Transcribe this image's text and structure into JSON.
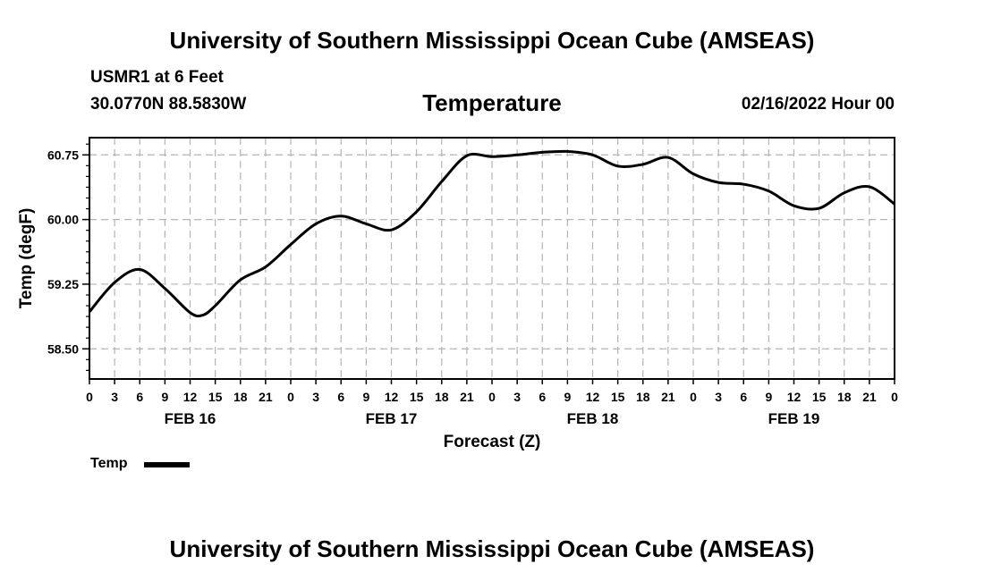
{
  "header": {
    "title": "University of Southern Mississippi Ocean Cube (AMSEAS)",
    "station": "USMR1 at 6 Feet",
    "coords": "30.0770N  88.5830W",
    "variable": "Temperature",
    "datetime": "02/16/2022 Hour 00"
  },
  "footer": {
    "title": "University of Southern Mississippi Ocean Cube (AMSEAS)"
  },
  "legend": {
    "label": "Temp",
    "color": "#000000"
  },
  "chart_data": {
    "type": "line",
    "title": "Temperature",
    "xlabel": "Forecast (Z)",
    "ylabel": "Temp (degF)",
    "xlim": [
      0,
      96
    ],
    "ylim": [
      58.15,
      60.95
    ],
    "yticks": [
      58.5,
      59.25,
      60.0,
      60.75
    ],
    "ytick_labels": [
      "58.50",
      "59.25",
      "60.00",
      "60.75"
    ],
    "yminor_step": 0.125,
    "xticks": [
      0,
      3,
      6,
      9,
      12,
      15,
      18,
      21,
      24,
      27,
      30,
      33,
      36,
      39,
      42,
      45,
      48,
      51,
      54,
      57,
      60,
      63,
      66,
      69,
      72,
      75,
      78,
      81,
      84,
      87,
      90,
      93,
      96
    ],
    "xtick_labels": [
      "0",
      "3",
      "6",
      "9",
      "12",
      "15",
      "18",
      "21",
      "0",
      "3",
      "6",
      "9",
      "12",
      "15",
      "18",
      "21",
      "0",
      "3",
      "6",
      "9",
      "12",
      "15",
      "18",
      "21",
      "0",
      "3",
      "6",
      "9",
      "12",
      "15",
      "18",
      "21",
      "0"
    ],
    "day_labels": [
      {
        "label": "FEB 16",
        "at": 12
      },
      {
        "label": "FEB 17",
        "at": 36
      },
      {
        "label": "FEB 18",
        "at": 60
      },
      {
        "label": "FEB 19",
        "at": 84
      }
    ],
    "grid": true,
    "series": [
      {
        "name": "Temp",
        "x": [
          0,
          3,
          6,
          9,
          12,
          13.5,
          15,
          18,
          21,
          24,
          27,
          30,
          33,
          36,
          39,
          42,
          45,
          48,
          51,
          54,
          57,
          60,
          63,
          66,
          69,
          72,
          75,
          78,
          81,
          84,
          87,
          90,
          93,
          96
        ],
        "values": [
          58.93,
          59.27,
          59.42,
          59.2,
          58.92,
          58.89,
          59.0,
          59.3,
          59.45,
          59.71,
          59.95,
          60.04,
          59.95,
          59.88,
          60.09,
          60.44,
          60.74,
          60.73,
          60.75,
          60.78,
          60.79,
          60.75,
          60.62,
          60.64,
          60.72,
          60.53,
          60.43,
          60.41,
          60.33,
          60.16,
          60.13,
          60.31,
          60.38,
          60.18
        ]
      }
    ]
  }
}
